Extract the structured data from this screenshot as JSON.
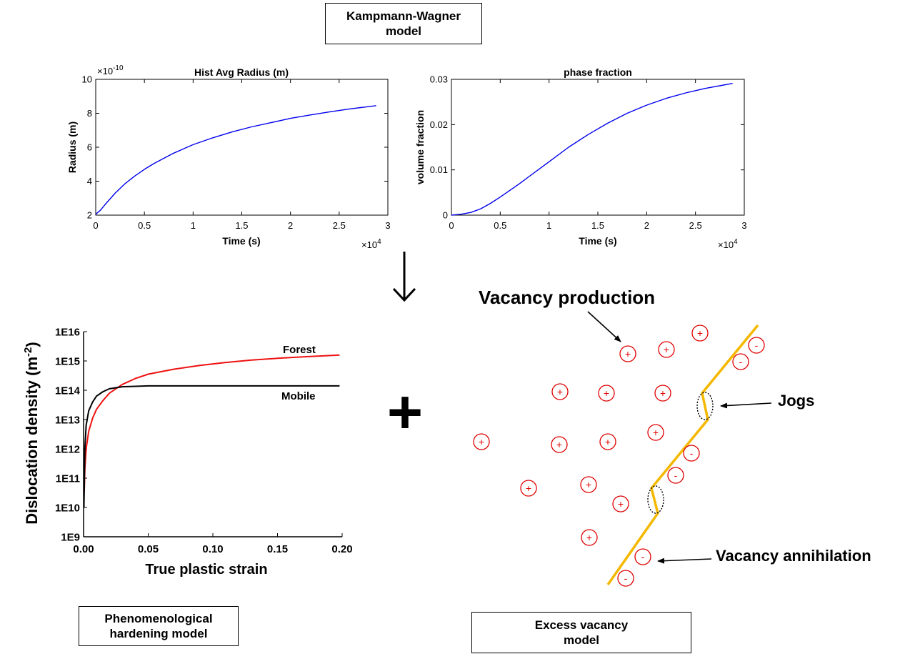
{
  "boxes": {
    "kw": {
      "line1": "Kampmann-Wagner",
      "line2": "model"
    },
    "phen": {
      "line1": "Phenomenological",
      "line2": "hardening model"
    },
    "vac": {
      "line1": "Excess vacancy",
      "line2": "model"
    }
  },
  "plus_sign": "+",
  "labels": {
    "vacancy_production": "Vacancy production",
    "jogs": "Jogs",
    "vacancy_annihilation": "Vacancy annihilation"
  },
  "vacancy_symbols": {
    "plus": "+",
    "minus": "-"
  },
  "colors": {
    "blue_line": "#0000ee",
    "red_line": "#ee1111",
    "black_line": "#000000",
    "dislocation": "#f5b800",
    "vacancy": "#e00000"
  },
  "chart_data": [
    {
      "type": "line",
      "title": "Hist Avg Radius (m)",
      "xlabel": "Time (s)",
      "ylabel": "Radius (m)",
      "x_multiplier": "×10",
      "x_exponent": "4",
      "y_multiplier": "×10",
      "y_exponent": "-10",
      "xlim": [
        0,
        3
      ],
      "ylim": [
        2,
        10
      ],
      "x_ticks": [
        "0",
        "0.5",
        "1",
        "1.5",
        "2",
        "2.5",
        "3"
      ],
      "y_ticks": [
        "2",
        "4",
        "6",
        "8",
        "10"
      ],
      "series": [
        {
          "values": [
            [
              0,
              2.05
            ],
            [
              0.05,
              2.3
            ],
            [
              0.1,
              2.65
            ],
            [
              0.2,
              3.3
            ],
            [
              0.3,
              3.85
            ],
            [
              0.4,
              4.3
            ],
            [
              0.5,
              4.7
            ],
            [
              0.6,
              5.05
            ],
            [
              0.8,
              5.65
            ],
            [
              1.0,
              6.15
            ],
            [
              1.2,
              6.55
            ],
            [
              1.4,
              6.9
            ],
            [
              1.6,
              7.2
            ],
            [
              1.8,
              7.45
            ],
            [
              2.0,
              7.7
            ],
            [
              2.2,
              7.9
            ],
            [
              2.4,
              8.08
            ],
            [
              2.6,
              8.25
            ],
            [
              2.88,
              8.45
            ]
          ]
        }
      ]
    },
    {
      "type": "line",
      "title": "phase fraction",
      "xlabel": "Time (s)",
      "ylabel": "volume fraction",
      "x_multiplier": "×10",
      "x_exponent": "4",
      "xlim": [
        0,
        3
      ],
      "ylim": [
        0,
        0.03
      ],
      "x_ticks": [
        "0",
        "0.5",
        "1",
        "1.5",
        "2",
        "2.5",
        "3"
      ],
      "y_ticks": [
        "0",
        "0.01",
        "0.02",
        "0.03"
      ],
      "series": [
        {
          "values": [
            [
              0,
              0
            ],
            [
              0.1,
              0.0002
            ],
            [
              0.2,
              0.0006
            ],
            [
              0.3,
              0.0014
            ],
            [
              0.4,
              0.0026
            ],
            [
              0.5,
              0.004
            ],
            [
              0.6,
              0.0055
            ],
            [
              0.7,
              0.007
            ],
            [
              0.8,
              0.0086
            ],
            [
              0.9,
              0.0102
            ],
            [
              1.0,
              0.0118
            ],
            [
              1.2,
              0.015
            ],
            [
              1.4,
              0.0178
            ],
            [
              1.6,
              0.0203
            ],
            [
              1.8,
              0.0225
            ],
            [
              2.0,
              0.0243
            ],
            [
              2.2,
              0.0258
            ],
            [
              2.4,
              0.027
            ],
            [
              2.6,
              0.028
            ],
            [
              2.88,
              0.0291
            ]
          ]
        }
      ]
    },
    {
      "type": "line",
      "xlabel": "True plastic strain",
      "ylabel": "Dislocation density (m",
      "ylabel_sup": "-2",
      "ylabel_close": ")",
      "y_scale": "log",
      "xlim": [
        0,
        0.2
      ],
      "ylim": [
        9,
        16
      ],
      "x_ticks": [
        "0.00",
        "0.05",
        "0.10",
        "0.15",
        "0.20"
      ],
      "y_ticks": [
        "1E9",
        "1E10",
        "1E11",
        "1E12",
        "1E13",
        "1E14",
        "1E15",
        "1E16"
      ],
      "series": [
        {
          "name": "Forest",
          "values": [
            [
              0.0005,
              10.5
            ],
            [
              0.001,
              11.3
            ],
            [
              0.002,
              12.0
            ],
            [
              0.004,
              12.6
            ],
            [
              0.007,
              13.05
            ],
            [
              0.01,
              13.35
            ],
            [
              0.015,
              13.65
            ],
            [
              0.02,
              13.9
            ],
            [
              0.03,
              14.2
            ],
            [
              0.04,
              14.4
            ],
            [
              0.05,
              14.55
            ],
            [
              0.07,
              14.72
            ],
            [
              0.09,
              14.85
            ],
            [
              0.11,
              14.95
            ],
            [
              0.13,
              15.03
            ],
            [
              0.15,
              15.09
            ],
            [
              0.17,
              15.14
            ],
            [
              0.198,
              15.2
            ]
          ]
        },
        {
          "name": "Mobile",
          "values": [
            [
              0.0003,
              10.0
            ],
            [
              0.001,
              12.0
            ],
            [
              0.002,
              12.8
            ],
            [
              0.004,
              13.3
            ],
            [
              0.007,
              13.6
            ],
            [
              0.01,
              13.8
            ],
            [
              0.015,
              13.95
            ],
            [
              0.02,
              14.05
            ],
            [
              0.03,
              14.12
            ],
            [
              0.05,
              14.15
            ],
            [
              0.1,
              14.15
            ],
            [
              0.15,
              14.15
            ],
            [
              0.198,
              14.15
            ]
          ]
        }
      ]
    }
  ]
}
